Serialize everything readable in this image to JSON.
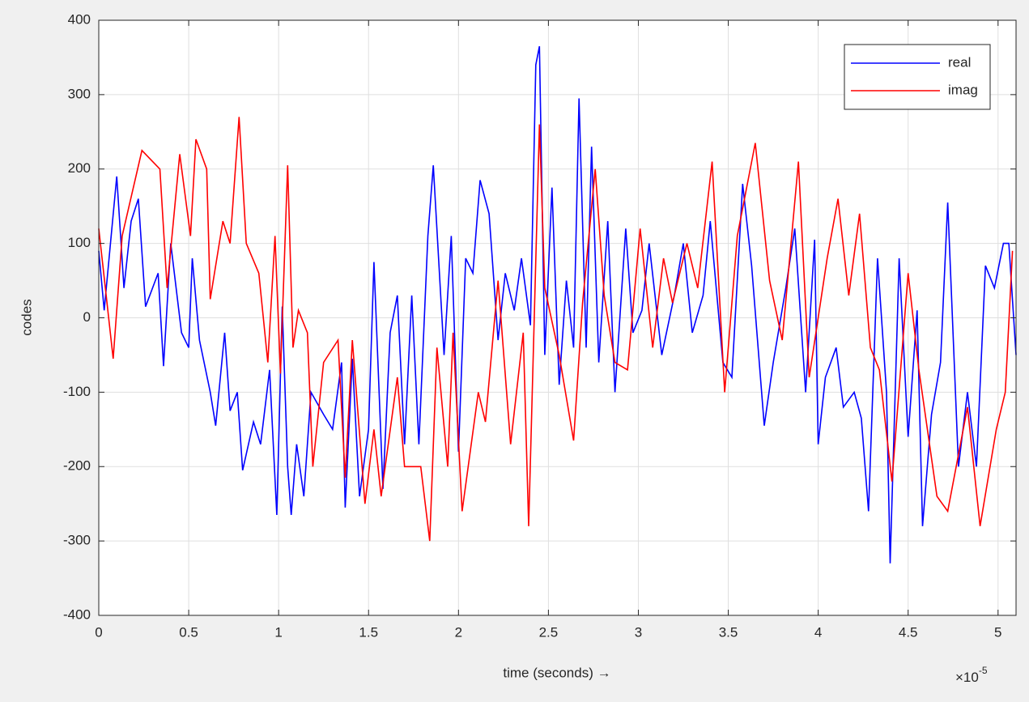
{
  "chart_data": {
    "type": "line",
    "xlabel": "time  (seconds) →",
    "ylabel": "codes",
    "x_multiplier": {
      "base": "×10",
      "exponent": "-5"
    },
    "xlim": [
      0,
      5.1
    ],
    "ylim": [
      -400,
      400
    ],
    "xticks": [
      0,
      0.5,
      1,
      1.5,
      2,
      2.5,
      3,
      3.5,
      4,
      4.5,
      5
    ],
    "yticks": [
      -400,
      -300,
      -200,
      -100,
      0,
      100,
      200,
      300,
      400
    ],
    "grid": true,
    "legend": "upper right",
    "series": [
      {
        "name": "real",
        "color": "#0000ff",
        "x": [
          0,
          0.03,
          0.1,
          0.14,
          0.18,
          0.22,
          0.26,
          0.33,
          0.36,
          0.4,
          0.46,
          0.5,
          0.52,
          0.56,
          0.62,
          0.65,
          0.7,
          0.73,
          0.77,
          0.8,
          0.86,
          0.9,
          0.95,
          0.99,
          1.02,
          1.05,
          1.07,
          1.1,
          1.14,
          1.18,
          1.25,
          1.3,
          1.35,
          1.37,
          1.41,
          1.45,
          1.5,
          1.53,
          1.58,
          1.62,
          1.66,
          1.7,
          1.74,
          1.78,
          1.83,
          1.86,
          1.92,
          1.96,
          2.0,
          2.04,
          2.08,
          2.12,
          2.17,
          2.22,
          2.26,
          2.31,
          2.35,
          2.4,
          2.43,
          2.45,
          2.48,
          2.52,
          2.56,
          2.6,
          2.64,
          2.67,
          2.71,
          2.74,
          2.78,
          2.83,
          2.87,
          2.93,
          2.97,
          3.02,
          3.06,
          3.13,
          3.2,
          3.25,
          3.3,
          3.36,
          3.4,
          3.47,
          3.52,
          3.58,
          3.63,
          3.7,
          3.75,
          3.82,
          3.87,
          3.93,
          3.98,
          4.0,
          4.04,
          4.1,
          4.14,
          4.2,
          4.24,
          4.28,
          4.33,
          4.38,
          4.4,
          4.45,
          4.5,
          4.55,
          4.58,
          4.63,
          4.68,
          4.72,
          4.78,
          4.83,
          4.88,
          4.93,
          4.98,
          5.03,
          5.06,
          5.1
        ],
        "values": [
          90,
          10,
          190,
          40,
          130,
          160,
          15,
          60,
          -65,
          100,
          -20,
          -40,
          80,
          -30,
          -100,
          -145,
          -20,
          -125,
          -100,
          -205,
          -140,
          -170,
          -70,
          -265,
          15,
          -200,
          -265,
          -170,
          -240,
          -100,
          -130,
          -150,
          -60,
          -255,
          -55,
          -240,
          -150,
          75,
          -230,
          -20,
          30,
          -170,
          30,
          -170,
          110,
          205,
          -50,
          110,
          -180,
          80,
          60,
          185,
          140,
          -30,
          60,
          10,
          80,
          -10,
          340,
          365,
          -50,
          175,
          -90,
          50,
          -40,
          295,
          -40,
          230,
          -60,
          130,
          -100,
          120,
          -20,
          10,
          100,
          -50,
          30,
          100,
          -20,
          30,
          130,
          -60,
          -80,
          180,
          70,
          -145,
          -60,
          40,
          120,
          -100,
          105,
          -170,
          -80,
          -40,
          -120,
          -100,
          -135,
          -260,
          80,
          -100,
          -330,
          80,
          -160,
          10,
          -280,
          -130,
          -60,
          155,
          -200,
          -100,
          -200,
          70,
          40,
          100,
          100,
          -50
        ]
      },
      {
        "name": "imag",
        "color": "#ff0000",
        "x": [
          0,
          0.08,
          0.13,
          0.24,
          0.34,
          0.38,
          0.45,
          0.51,
          0.54,
          0.6,
          0.62,
          0.69,
          0.73,
          0.78,
          0.82,
          0.89,
          0.94,
          0.98,
          1.01,
          1.05,
          1.08,
          1.11,
          1.16,
          1.19,
          1.25,
          1.33,
          1.37,
          1.41,
          1.48,
          1.53,
          1.57,
          1.66,
          1.7,
          1.79,
          1.84,
          1.88,
          1.94,
          1.97,
          2.02,
          2.11,
          2.15,
          2.22,
          2.29,
          2.36,
          2.39,
          2.45,
          2.48,
          2.56,
          2.64,
          2.69,
          2.76,
          2.81,
          2.87,
          2.94,
          3.01,
          3.08,
          3.14,
          3.19,
          3.27,
          3.33,
          3.41,
          3.48,
          3.55,
          3.65,
          3.73,
          3.8,
          3.89,
          3.95,
          4.05,
          4.11,
          4.17,
          4.23,
          4.29,
          4.34,
          4.41,
          4.5,
          4.56,
          4.66,
          4.72,
          4.83,
          4.9,
          4.99,
          5.04,
          5.08
        ],
        "values": [
          120,
          -55,
          110,
          225,
          200,
          40,
          220,
          110,
          240,
          200,
          25,
          130,
          100,
          270,
          100,
          60,
          -60,
          110,
          -75,
          205,
          -40,
          10,
          -20,
          -200,
          -60,
          -30,
          -215,
          -30,
          -250,
          -150,
          -240,
          -80,
          -200,
          -200,
          -300,
          -40,
          -200,
          -20,
          -260,
          -100,
          -140,
          50,
          -170,
          -20,
          -280,
          260,
          40,
          -50,
          -165,
          20,
          200,
          30,
          -60,
          -70,
          120,
          -40,
          80,
          20,
          100,
          40,
          210,
          -100,
          110,
          235,
          50,
          -30,
          210,
          -80,
          80,
          160,
          30,
          140,
          -40,
          -70,
          -220,
          60,
          -70,
          -240,
          -260,
          -120,
          -280,
          -150,
          -100,
          90
        ]
      }
    ]
  }
}
